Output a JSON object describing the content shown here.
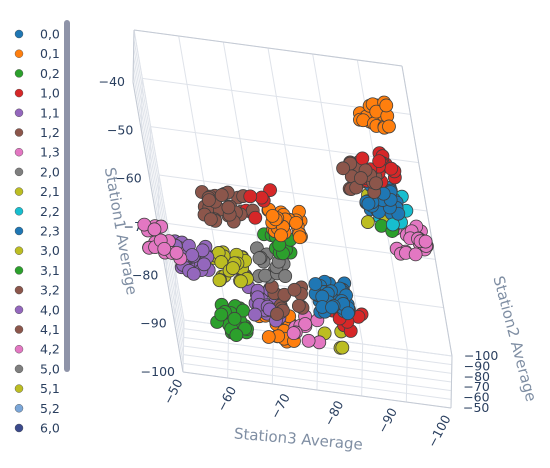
{
  "chart_data": {
    "type": "scatter3d",
    "axes": {
      "z": {
        "title": "Station1 Average",
        "ticks": [
          "−40",
          "−50",
          "−60",
          "−70",
          "−80",
          "−90",
          "−100"
        ],
        "range": [
          -100,
          -40
        ]
      },
      "y": {
        "title": "Station2 Average",
        "ticks": [
          "−50",
          "−60",
          "−70",
          "−80",
          "−90",
          "−100"
        ],
        "range": [
          -100,
          -50
        ]
      },
      "x": {
        "title": "Station3 Average",
        "ticks": [
          "−50",
          "−60",
          "−70",
          "−80",
          "−90",
          "−100"
        ],
        "range": [
          -100,
          -50
        ]
      }
    },
    "grid": true,
    "legend_position": "left",
    "series": [
      {
        "name": "0,0",
        "color": "#1f77b4"
      },
      {
        "name": "0,1",
        "color": "#ff7f0e"
      },
      {
        "name": "0,2",
        "color": "#2ca02c"
      },
      {
        "name": "1,0",
        "color": "#d62728"
      },
      {
        "name": "1,1",
        "color": "#9467bd"
      },
      {
        "name": "1,2",
        "color": "#8c564b"
      },
      {
        "name": "1,3",
        "color": "#e377c2"
      },
      {
        "name": "2,0",
        "color": "#7f7f7f"
      },
      {
        "name": "2,1",
        "color": "#bcbd22"
      },
      {
        "name": "2,2",
        "color": "#17becf"
      },
      {
        "name": "2,3",
        "color": "#1f77b4"
      },
      {
        "name": "3,0",
        "color": "#bcbd22"
      },
      {
        "name": "3,1",
        "color": "#2ca02c"
      },
      {
        "name": "3,2",
        "color": "#8c564b"
      },
      {
        "name": "4,0",
        "color": "#9467bd"
      },
      {
        "name": "4,1",
        "color": "#8c564b"
      },
      {
        "name": "4,2",
        "color": "#e377c2"
      },
      {
        "name": "5,0",
        "color": "#7f7f7f"
      },
      {
        "name": "5,1",
        "color": "#bcbd22"
      },
      {
        "name": "5,2",
        "color": "#7aa6d8"
      },
      {
        "name": "6,0",
        "color": "#3b4a8c"
      }
    ],
    "clusters": [
      {
        "series": "0,1",
        "station3": -95,
        "station2": -50,
        "station1": -40,
        "n": 24
      },
      {
        "series": "1,2",
        "station3": -90,
        "station2": -55,
        "station1": -55,
        "n": 24
      },
      {
        "series": "1,0",
        "station3": -94,
        "station2": -57,
        "station1": -53,
        "n": 22
      },
      {
        "series": "0,0",
        "station3": -93,
        "station2": -60,
        "station1": -60,
        "n": 40
      },
      {
        "series": "2,2",
        "station3": -95,
        "station2": -62,
        "station1": -62,
        "n": 8
      },
      {
        "series": "2,1",
        "station3": -91,
        "station2": -60,
        "station1": -62,
        "n": 8
      },
      {
        "series": "0,2",
        "station3": -94,
        "station2": -62,
        "station1": -64,
        "n": 10
      },
      {
        "series": "1,3",
        "station3": -97,
        "station2": -70,
        "station1": -70,
        "n": 22
      },
      {
        "series": "4,1",
        "station3": -62,
        "station2": -55,
        "station1": -65,
        "n": 22
      },
      {
        "series": "3,2",
        "station3": -66,
        "station2": -56,
        "station1": -64,
        "n": 10
      },
      {
        "series": "1,0",
        "station3": -70,
        "station2": -56,
        "station1": -63,
        "n": 6
      },
      {
        "series": "0,1",
        "station3": -74,
        "station2": -60,
        "station1": -68,
        "n": 30
      },
      {
        "series": "0,2",
        "station3": -72,
        "station2": -63,
        "station1": -74,
        "n": 10
      },
      {
        "series": "1,3",
        "station3": -50,
        "station2": -60,
        "station1": -75,
        "n": 20
      },
      {
        "series": "4,0",
        "station3": -55,
        "station2": -62,
        "station1": -78,
        "n": 24
      },
      {
        "series": "2,1",
        "station3": -62,
        "station2": -66,
        "station1": -80,
        "n": 28
      },
      {
        "series": "2,0",
        "station3": -70,
        "station2": -65,
        "station1": -78,
        "n": 14
      },
      {
        "series": "0,0",
        "station3": -80,
        "station2": -72,
        "station1": -85,
        "n": 50
      },
      {
        "series": "4,1",
        "station3": -72,
        "station2": -70,
        "station1": -86,
        "n": 14
      },
      {
        "series": "1,1",
        "station3": -67,
        "station2": -73,
        "station1": -88,
        "n": 28
      },
      {
        "series": "0,2",
        "station3": -60,
        "station2": -82,
        "station1": -95,
        "n": 28
      },
      {
        "series": "1,0",
        "station3": -82,
        "station2": -78,
        "station1": -90,
        "n": 10
      },
      {
        "series": "0,1",
        "station3": -68,
        "station2": -84,
        "station1": -96,
        "n": 12
      },
      {
        "series": "1,3",
        "station3": -74,
        "station2": -80,
        "station1": -94,
        "n": 10
      },
      {
        "series": "5,1",
        "station3": -78,
        "station2": -86,
        "station1": -97,
        "n": 4
      }
    ]
  }
}
